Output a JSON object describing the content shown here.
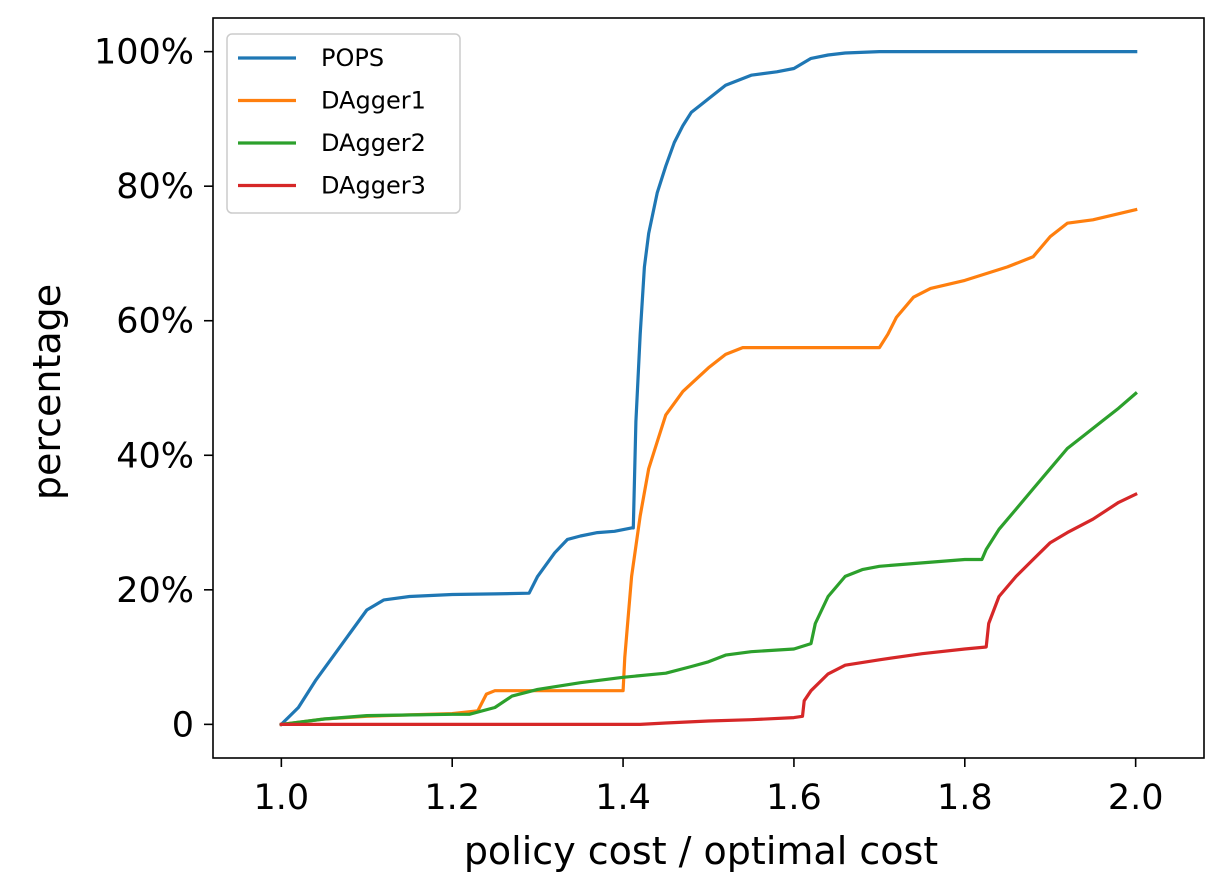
{
  "chart_data": {
    "type": "line",
    "title": "",
    "xlabel": "policy cost / optimal cost",
    "ylabel": "percentage",
    "xlim": [
      0.92,
      2.08
    ],
    "ylim": [
      -5,
      105
    ],
    "xticks": [
      1.0,
      1.2,
      1.4,
      1.6,
      1.8,
      2.0
    ],
    "xtick_labels": [
      "1.0",
      "1.2",
      "1.4",
      "1.6",
      "1.8",
      "2.0"
    ],
    "yticks": [
      0,
      20,
      40,
      60,
      80,
      100
    ],
    "ytick_labels": [
      "0",
      "20%",
      "40%",
      "60%",
      "80%",
      "100%"
    ],
    "grid": false,
    "legend_position": "top-left",
    "series": [
      {
        "name": "POPS",
        "color": "#1f77b4",
        "x": [
          1.0,
          1.02,
          1.04,
          1.06,
          1.08,
          1.1,
          1.12,
          1.15,
          1.2,
          1.25,
          1.29,
          1.3,
          1.32,
          1.335,
          1.35,
          1.37,
          1.39,
          1.41,
          1.412,
          1.415,
          1.42,
          1.425,
          1.43,
          1.44,
          1.45,
          1.46,
          1.47,
          1.48,
          1.49,
          1.5,
          1.52,
          1.55,
          1.58,
          1.6,
          1.62,
          1.64,
          1.66,
          1.7,
          1.8,
          2.0
        ],
        "y": [
          0,
          2.5,
          6.5,
          10,
          13.5,
          17,
          18.5,
          19,
          19.3,
          19.4,
          19.5,
          22,
          25.5,
          27.5,
          28,
          28.5,
          28.7,
          29.2,
          29.2,
          45,
          58,
          68,
          73,
          79,
          83,
          86.5,
          89,
          91,
          92,
          93,
          95,
          96.5,
          97,
          97.5,
          99,
          99.5,
          99.8,
          100,
          100,
          100
        ]
      },
      {
        "name": "DAgger1",
        "color": "#ff7f0e",
        "x": [
          1.0,
          1.05,
          1.1,
          1.15,
          1.2,
          1.23,
          1.24,
          1.25,
          1.3,
          1.35,
          1.4,
          1.402,
          1.41,
          1.42,
          1.43,
          1.44,
          1.45,
          1.47,
          1.5,
          1.52,
          1.54,
          1.6,
          1.65,
          1.7,
          1.71,
          1.72,
          1.74,
          1.76,
          1.8,
          1.85,
          1.88,
          1.9,
          1.92,
          1.95,
          2.0
        ],
        "y": [
          0,
          0.8,
          1.2,
          1.4,
          1.6,
          2,
          4.5,
          5,
          5,
          5,
          5,
          10,
          22,
          31,
          38,
          42,
          46,
          49.5,
          53,
          55,
          56,
          56,
          56,
          56,
          58,
          60.5,
          63.5,
          64.8,
          66,
          68,
          69.5,
          72.5,
          74.5,
          75,
          76.5
        ]
      },
      {
        "name": "DAgger2",
        "color": "#2ca02c",
        "x": [
          1.0,
          1.05,
          1.1,
          1.2,
          1.22,
          1.25,
          1.27,
          1.3,
          1.35,
          1.4,
          1.45,
          1.48,
          1.5,
          1.52,
          1.55,
          1.6,
          1.62,
          1.625,
          1.64,
          1.66,
          1.68,
          1.7,
          1.75,
          1.8,
          1.82,
          1.825,
          1.84,
          1.86,
          1.88,
          1.9,
          1.92,
          1.94,
          1.96,
          1.98,
          2.0
        ],
        "y": [
          0,
          0.8,
          1.3,
          1.5,
          1.5,
          2.5,
          4.2,
          5.2,
          6.2,
          7,
          7.6,
          8.6,
          9.3,
          10.3,
          10.8,
          11.2,
          12,
          15,
          19,
          22,
          23,
          23.5,
          24,
          24.5,
          24.5,
          26,
          29,
          32,
          35,
          38,
          41,
          43,
          45,
          47,
          49.2
        ]
      },
      {
        "name": "DAgger3",
        "color": "#d62728",
        "x": [
          1.0,
          1.1,
          1.2,
          1.3,
          1.42,
          1.45,
          1.5,
          1.55,
          1.6,
          1.61,
          1.612,
          1.62,
          1.64,
          1.66,
          1.7,
          1.75,
          1.8,
          1.825,
          1.828,
          1.84,
          1.86,
          1.88,
          1.9,
          1.92,
          1.95,
          1.98,
          2.0
        ],
        "y": [
          0,
          0,
          0,
          0,
          0,
          0.2,
          0.5,
          0.7,
          1,
          1.2,
          3.5,
          5,
          7.5,
          8.8,
          9.6,
          10.5,
          11.2,
          11.5,
          15,
          19,
          22,
          24.5,
          27,
          28.5,
          30.5,
          33,
          34.2
        ]
      }
    ]
  }
}
